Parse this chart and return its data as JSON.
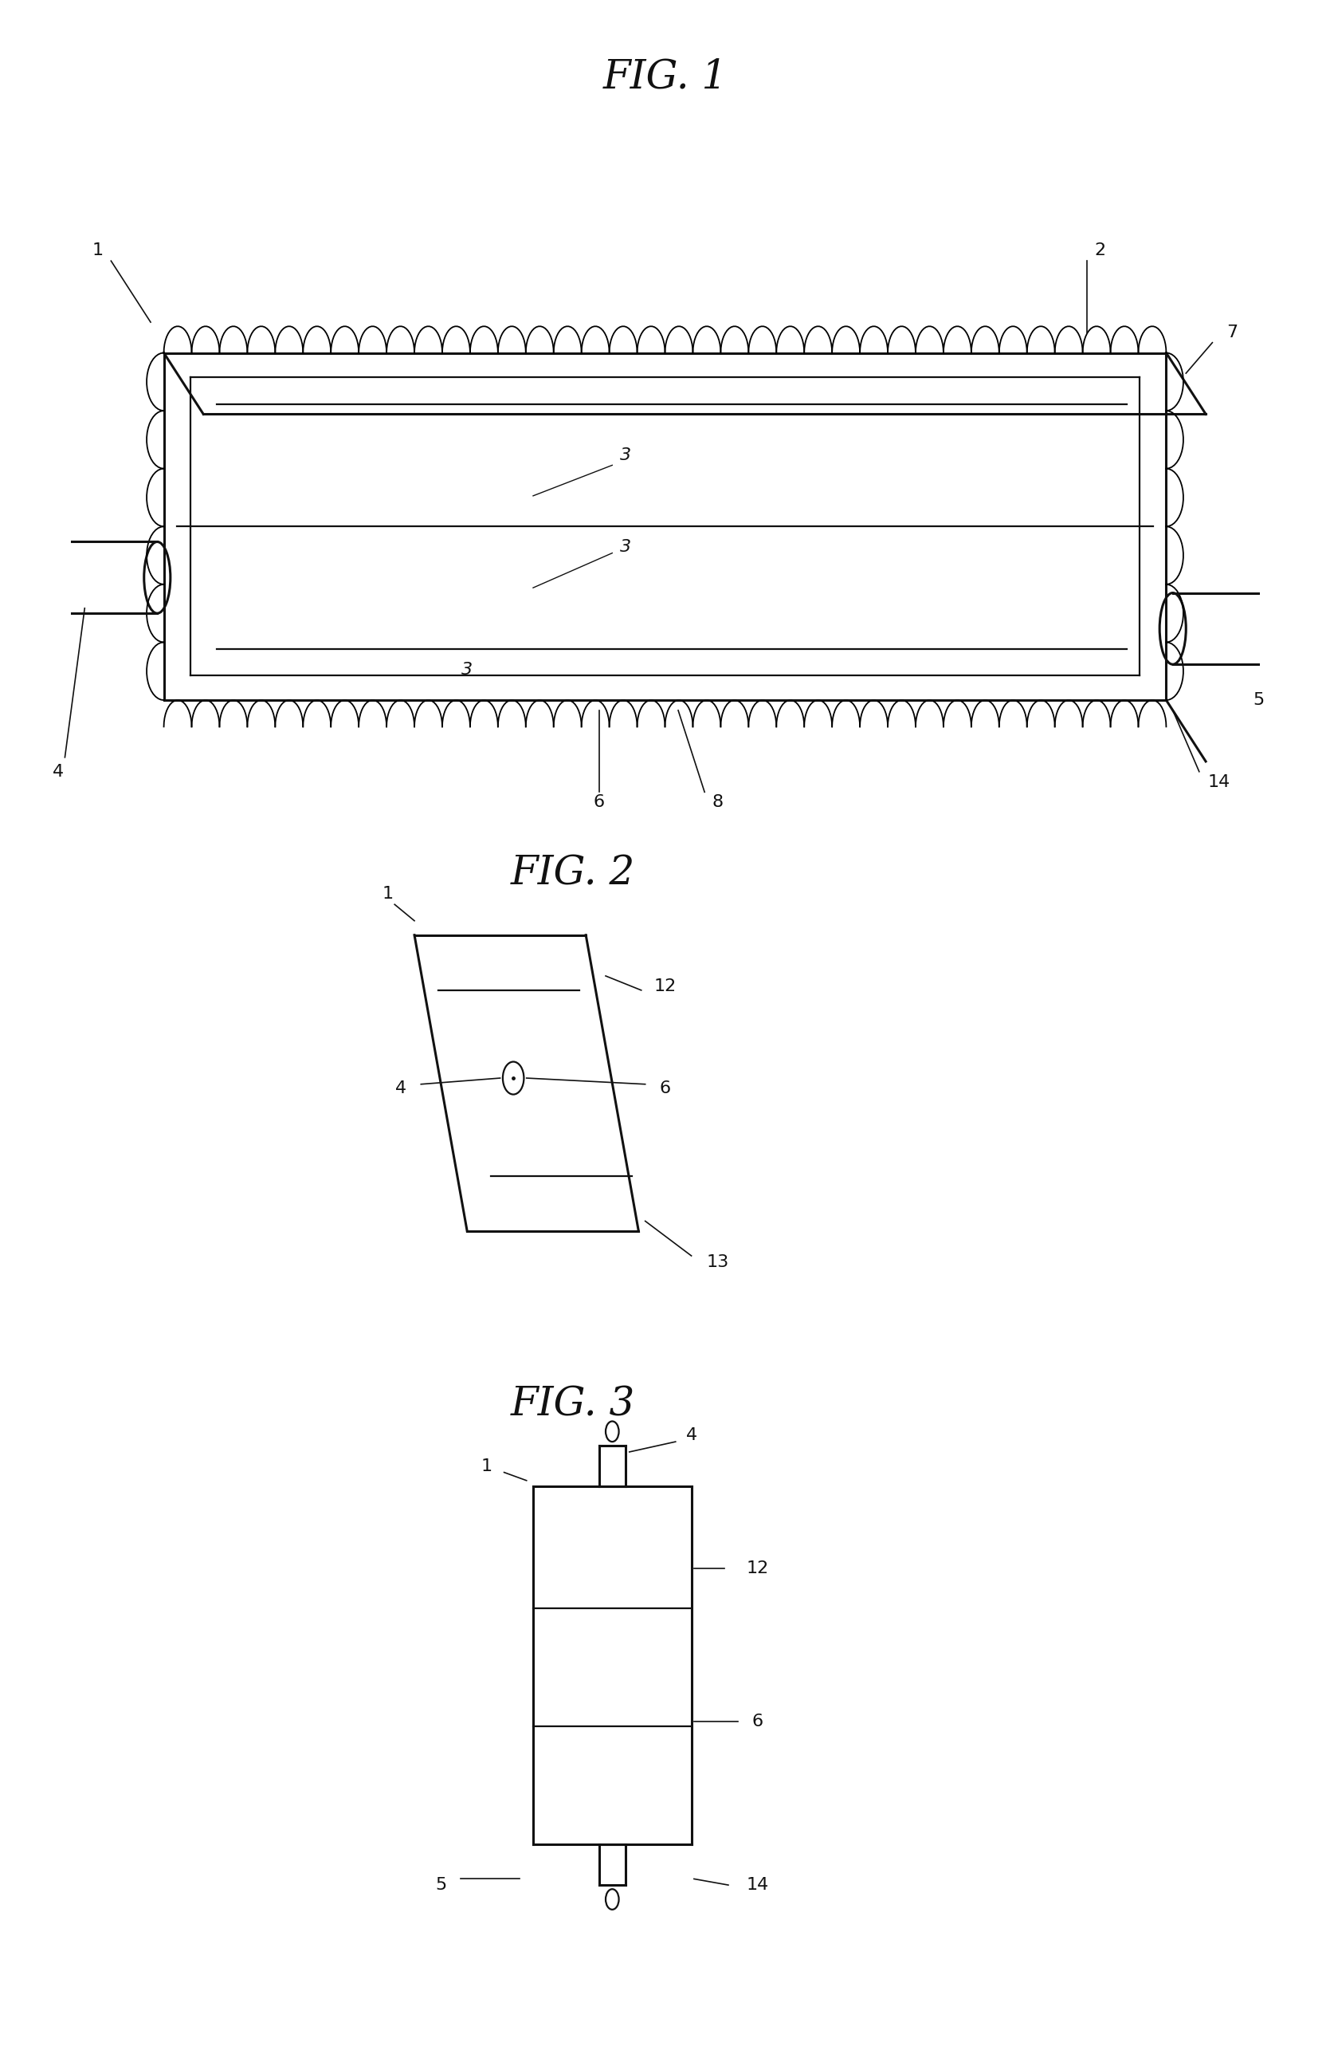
{
  "bg_color": "#ffffff",
  "line_color": "#111111",
  "fig_width": 16.69,
  "fig_height": 25.76,
  "fig1_title": "FIG. 1",
  "fig2_title": "FIG. 2",
  "fig3_title": "FIG. 3",
  "label_fs": 16,
  "title_fs": 36
}
